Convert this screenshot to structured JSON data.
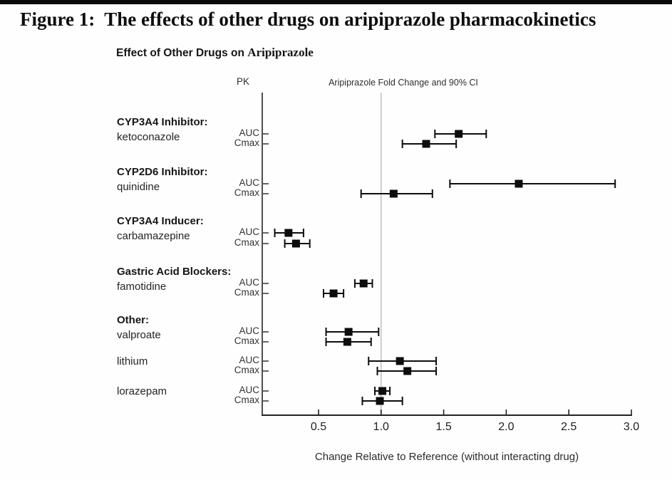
{
  "figure": {
    "title": "Figure 1:  The effects of other drugs on aripiprazole pharmacokinetics"
  },
  "chart": {
    "title_prefix": "Effect of Other Drugs on ",
    "title_drug": "Aripiprazole",
    "pk_header": "PK",
    "ci_header": "Aripiprazole Fold Change and 90% CI"
  },
  "colors": {
    "marker_black": "#0d0d0d",
    "reference_line_gray": "#cccccc",
    "axis_text": "#2a2a2a"
  },
  "chart_data": {
    "type": "scatter",
    "subtype": "forest-plot",
    "title": "Effect of Other Drugs on Aripiprazole",
    "xlabel": "Change Relative to Reference (without interacting drug)",
    "x_ticks": [
      0.5,
      1.0,
      1.5,
      2.0,
      2.5,
      3.0
    ],
    "xlim": [
      0.05,
      3.0
    ],
    "reference_line": 1.0,
    "ci_level": "90% CI",
    "marker": "filled-square",
    "legend_position": "none",
    "grid": false,
    "groups": [
      {
        "category": "CYP3A4 Inhibitor:",
        "drug": "ketoconazole",
        "rows": [
          {
            "pk": "AUC",
            "estimate": 1.62,
            "ci_low": 1.43,
            "ci_high": 1.84
          },
          {
            "pk": "Cmax",
            "estimate": 1.36,
            "ci_low": 1.17,
            "ci_high": 1.6
          }
        ]
      },
      {
        "category": "CYP2D6 Inhibitor:",
        "drug": "quinidine",
        "rows": [
          {
            "pk": "AUC",
            "estimate": 2.1,
            "ci_low": 1.55,
            "ci_high": 2.87
          },
          {
            "pk": "Cmax",
            "estimate": 1.1,
            "ci_low": 0.84,
            "ci_high": 1.41
          }
        ]
      },
      {
        "category": "CYP3A4 Inducer:",
        "drug": "carbamazepine",
        "rows": [
          {
            "pk": "AUC",
            "estimate": 0.26,
            "ci_low": 0.15,
            "ci_high": 0.38
          },
          {
            "pk": "Cmax",
            "estimate": 0.32,
            "ci_low": 0.23,
            "ci_high": 0.43
          }
        ]
      },
      {
        "category": "Gastric Acid Blockers:",
        "drug": "famotidine",
        "rows": [
          {
            "pk": "AUC",
            "estimate": 0.86,
            "ci_low": 0.79,
            "ci_high": 0.93
          },
          {
            "pk": "Cmax",
            "estimate": 0.62,
            "ci_low": 0.54,
            "ci_high": 0.7
          }
        ]
      },
      {
        "category": "Other:",
        "drug": "valproate",
        "rows": [
          {
            "pk": "AUC",
            "estimate": 0.74,
            "ci_low": 0.56,
            "ci_high": 0.98
          },
          {
            "pk": "Cmax",
            "estimate": 0.73,
            "ci_low": 0.56,
            "ci_high": 0.92
          }
        ]
      },
      {
        "category": "",
        "drug": "lithium",
        "rows": [
          {
            "pk": "AUC",
            "estimate": 1.15,
            "ci_low": 0.9,
            "ci_high": 1.44
          },
          {
            "pk": "Cmax",
            "estimate": 1.21,
            "ci_low": 0.97,
            "ci_high": 1.44
          }
        ]
      },
      {
        "category": "",
        "drug": "lorazepam",
        "rows": [
          {
            "pk": "AUC",
            "estimate": 1.01,
            "ci_low": 0.95,
            "ci_high": 1.07
          },
          {
            "pk": "Cmax",
            "estimate": 0.99,
            "ci_low": 0.85,
            "ci_high": 1.17
          }
        ]
      }
    ]
  }
}
